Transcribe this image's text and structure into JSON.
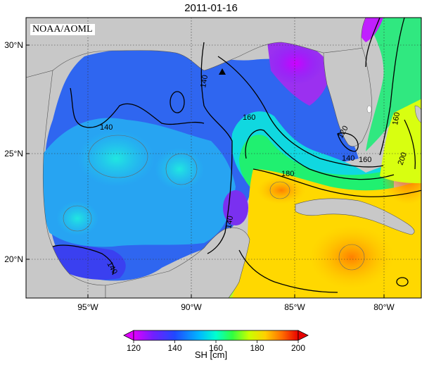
{
  "title": "2011-01-16",
  "credit": "NOAA/AOML",
  "lat_labels": [
    "30°N",
    "25°N",
    "20°N"
  ],
  "lon_labels": [
    "95°W",
    "90°W",
    "85°W",
    "80°W"
  ],
  "contour_labels": [
    "140",
    "140",
    "140",
    "140",
    "160",
    "160",
    "180",
    "160",
    "120",
    "140",
    "200"
  ],
  "colorbar": {
    "label": "SH [cm]",
    "ticks": [
      "120",
      "140",
      "160",
      "180",
      "200"
    ],
    "colors": [
      "#e000ff",
      "#6a20ff",
      "#2050ff",
      "#00d8ff",
      "#00ff60",
      "#c8ff00",
      "#ffb000",
      "#ff6000",
      "#e80000"
    ]
  },
  "marker_icon": "triangle-marker-icon",
  "land_color": "#c8c8c8"
}
